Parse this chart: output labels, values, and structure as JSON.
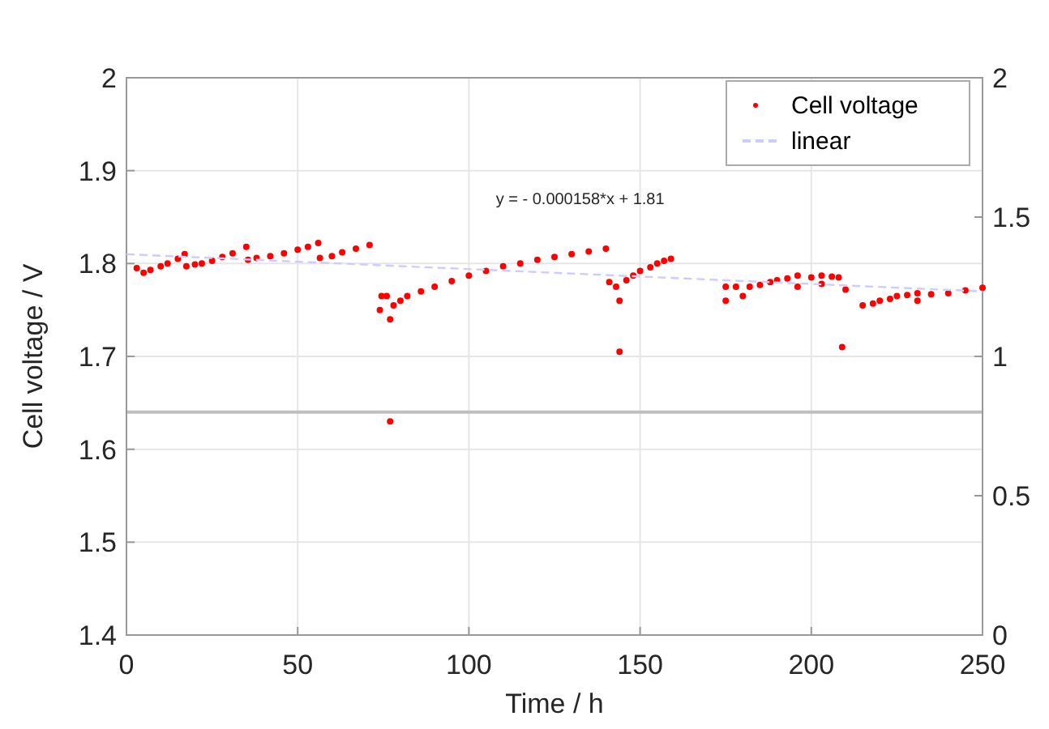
{
  "chart_data": {
    "type": "scatter",
    "xlabel": "Time / h",
    "ylabel": "Cell voltage / V",
    "xlim": [
      0,
      250
    ],
    "xticks": [
      0,
      50,
      100,
      150,
      200,
      250
    ],
    "ylim": [
      1.4,
      2
    ],
    "yticks": [
      1.4,
      1.5,
      1.6,
      1.7,
      1.8,
      1.9,
      2
    ],
    "y2lim": [
      0,
      2
    ],
    "y2ticks": [
      0,
      0.5,
      1,
      1.5,
      2
    ],
    "grid": true,
    "legend": "top right",
    "annotations": [
      "y = - 0.000158*x + 1.81"
    ],
    "ref_lines": [
      {
        "axis": "y",
        "value": 1.64,
        "color": "#bfbfbf"
      }
    ],
    "series": [
      {
        "name": "Cell voltage",
        "color": "#ff0000",
        "marker": "circle",
        "x": [
          3,
          5,
          7,
          10,
          12,
          15,
          17,
          17.5,
          20,
          22,
          25,
          28,
          31,
          35,
          35.5,
          38,
          42,
          46,
          50,
          53,
          56,
          56.5,
          60,
          63,
          67,
          71,
          74,
          74.5,
          76,
          77,
          77,
          78,
          80,
          82,
          86,
          90,
          95,
          100,
          105,
          110,
          115,
          120,
          125,
          130,
          135,
          140,
          141,
          143,
          144,
          144,
          146,
          148,
          150,
          153,
          155,
          157,
          159,
          175,
          175,
          178,
          180,
          182,
          185,
          188,
          190,
          193,
          196,
          196,
          200,
          203,
          203,
          206,
          208,
          209,
          210,
          215,
          218,
          220,
          223,
          225,
          228,
          231,
          231,
          235,
          240,
          245,
          250
        ],
        "values": [
          1.795,
          1.79,
          1.793,
          1.797,
          1.8,
          1.805,
          1.81,
          1.797,
          1.799,
          1.8,
          1.803,
          1.807,
          1.811,
          1.818,
          1.804,
          1.806,
          1.808,
          1.811,
          1.815,
          1.818,
          1.822,
          1.806,
          1.808,
          1.812,
          1.816,
          1.82,
          1.75,
          1.765,
          1.765,
          1.74,
          1.63,
          1.755,
          1.76,
          1.765,
          1.77,
          1.775,
          1.781,
          1.787,
          1.792,
          1.797,
          1.8,
          1.804,
          1.807,
          1.81,
          1.813,
          1.816,
          1.78,
          1.775,
          1.76,
          1.705,
          1.782,
          1.787,
          1.792,
          1.796,
          1.8,
          1.803,
          1.805,
          1.76,
          1.775,
          1.775,
          1.765,
          1.775,
          1.777,
          1.78,
          1.782,
          1.784,
          1.787,
          1.775,
          1.785,
          1.787,
          1.778,
          1.786,
          1.785,
          1.71,
          1.772,
          1.755,
          1.757,
          1.76,
          1.762,
          1.765,
          1.766,
          1.768,
          1.76,
          1.767,
          1.768,
          1.771,
          1.774
        ]
      },
      {
        "name": "linear",
        "color": "#ccccff",
        "type": "line",
        "line_style": "dashed",
        "x": [
          0,
          250
        ],
        "values": [
          1.81,
          1.77
        ]
      }
    ]
  }
}
